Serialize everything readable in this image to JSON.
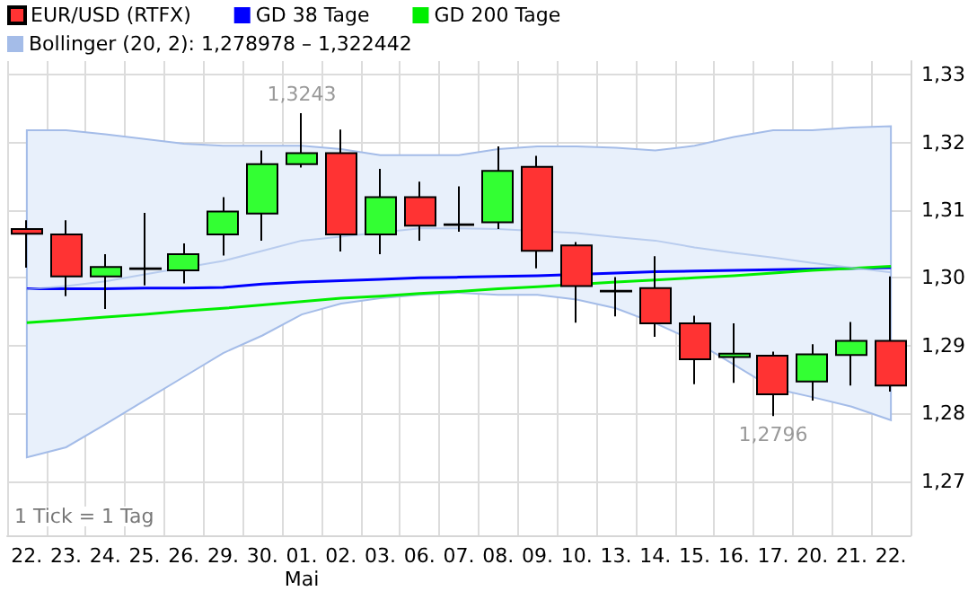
{
  "chart_data": {
    "type": "candlestick",
    "categories": [
      "22.",
      "23.",
      "24.",
      "25.",
      "26.",
      "29.",
      "30.",
      "01.\nMai",
      "02.",
      "03.",
      "06.",
      "07.",
      "08.",
      "09.",
      "10.",
      "13.",
      "14.",
      "15.",
      "16.",
      "17.",
      "20.",
      "21.",
      "22."
    ],
    "series": [
      {
        "name": "EUR/USD (RTFX)",
        "ohlc": [
          [
            1.3072,
            1.3085,
            1.3015,
            1.3065
          ],
          [
            1.3064,
            1.3085,
            1.2973,
            1.3002
          ],
          [
            1.3002,
            1.3035,
            1.2954,
            1.3016
          ],
          [
            1.3013,
            1.3096,
            1.2989,
            1.3014
          ],
          [
            1.3011,
            1.3051,
            1.2992,
            1.3035
          ],
          [
            1.3064,
            1.3119,
            1.3033,
            1.3098
          ],
          [
            1.3095,
            1.3188,
            1.3055,
            1.3168
          ],
          [
            1.3168,
            1.3243,
            1.3163,
            1.3184
          ],
          [
            1.3184,
            1.3219,
            1.3039,
            1.3064
          ],
          [
            1.3064,
            1.3161,
            1.3035,
            1.3119
          ],
          [
            1.3119,
            1.3142,
            1.3055,
            1.3077
          ],
          [
            1.3079,
            1.3135,
            1.3068,
            1.3078
          ],
          [
            1.3082,
            1.3194,
            1.3072,
            1.3158
          ],
          [
            1.3164,
            1.318,
            1.3014,
            1.304
          ],
          [
            1.3048,
            1.3053,
            1.2934,
            1.2988
          ],
          [
            1.2981,
            1.3001,
            1.2943,
            1.298
          ],
          [
            1.2985,
            1.3032,
            1.2913,
            1.2933
          ],
          [
            1.2933,
            1.2944,
            1.2843,
            1.288
          ],
          [
            1.2883,
            1.2933,
            1.2845,
            1.2888
          ],
          [
            1.2885,
            1.2891,
            1.2796,
            1.2828
          ],
          [
            1.2847,
            1.2902,
            1.2819,
            1.2887
          ],
          [
            1.2886,
            1.2935,
            1.2841,
            1.2907
          ],
          [
            1.2907,
            1.3002,
            1.2832,
            1.2841
          ]
        ],
        "colors": [
          "#ff3333",
          "#ff3333",
          "#33ff33",
          "#ff3333",
          "#33ff33",
          "#33ff33",
          "#33ff33",
          "#33ff33",
          "#ff3333",
          "#33ff33",
          "#ff3333",
          "#ff3333",
          "#33ff33",
          "#ff3333",
          "#ff3333",
          "#ff3333",
          "#ff3333",
          "#ff3333",
          "#33ff33",
          "#ff3333",
          "#33ff33",
          "#33ff33",
          "#ff3333"
        ],
        "color": "#ff3333"
      },
      {
        "name": "GD 38 Tage",
        "type": "line",
        "color": "#0000ff",
        "values": [
          1.2984,
          1.2984,
          1.2984,
          1.2985,
          1.2985,
          1.2986,
          1.2991,
          1.2994,
          1.2996,
          1.2998,
          1.3,
          1.3001,
          1.3002,
          1.3003,
          null,
          1.3007,
          1.3009,
          1.301,
          1.3011,
          1.3012,
          1.3013,
          1.3014,
          1.3015
        ]
      },
      {
        "name": "GD 200 Tage",
        "type": "line",
        "color": "#00ee00",
        "values": [
          1.2934,
          1.2938,
          1.2942,
          1.2946,
          1.2951,
          1.2955,
          1.296,
          1.2965,
          1.297,
          1.2973,
          1.2977,
          1.298,
          1.2984,
          1.2987,
          null,
          1.2994,
          1.2997,
          1.3,
          1.3003,
          1.3007,
          1.3011,
          1.3014,
          1.3017
        ]
      },
      {
        "name": "Bollinger (20, 2): 1,278978 – 1,322442",
        "type": "line",
        "color": "#a4bce8",
        "values": [
          1.2983,
          1.2988,
          1.2995,
          1.3005,
          null,
          1.3025,
          1.304,
          1.3055,
          null,
          null,
          1.3073,
          1.3073,
          1.3072,
          null,
          1.3066,
          1.306,
          1.3055,
          1.3045,
          1.3037,
          1.303,
          1.3022,
          1.3015,
          1.3008
        ],
        "lower": [
          1.2735,
          1.275,
          1.2784,
          1.2819,
          1.2854,
          1.2889,
          1.2915,
          1.2946,
          1.2962,
          1.297,
          1.2975,
          1.2978,
          1.2975,
          1.2975,
          1.2968,
          1.2955,
          1.2933,
          1.2907,
          1.2872,
          1.2837,
          1.2824,
          1.281,
          1.279
        ],
        "upper": [
          1.3218,
          1.3218,
          1.3212,
          1.3205,
          1.3198,
          1.3195,
          1.3195,
          1.3195,
          1.319,
          1.3181,
          1.3181,
          1.3181,
          1.319,
          1.3194,
          1.3194,
          1.3192,
          1.3188,
          1.3195,
          1.3208,
          1.3218,
          1.3218,
          1.3222,
          1.3224
        ]
      }
    ],
    "ylim": [
      1.262,
      1.332
    ],
    "yticks": [
      {
        "value": 1.27,
        "label": "1,27"
      },
      {
        "value": 1.28,
        "label": "1,28"
      },
      {
        "value": 1.29,
        "label": "1,29"
      },
      {
        "value": 1.3,
        "label": "1,30"
      },
      {
        "value": 1.31,
        "label": "1,31"
      },
      {
        "value": 1.32,
        "label": "1,32"
      },
      {
        "value": 1.33,
        "label": "1,33"
      }
    ],
    "grid": true,
    "legend": "top left",
    "annotations": [
      {
        "text": "1,3243",
        "x": "01.\nMai",
        "y": 1.3243
      },
      {
        "text": "1,2796",
        "x": "17.",
        "y": 1.2796
      },
      "1 Tick = 1 Tag"
    ]
  }
}
